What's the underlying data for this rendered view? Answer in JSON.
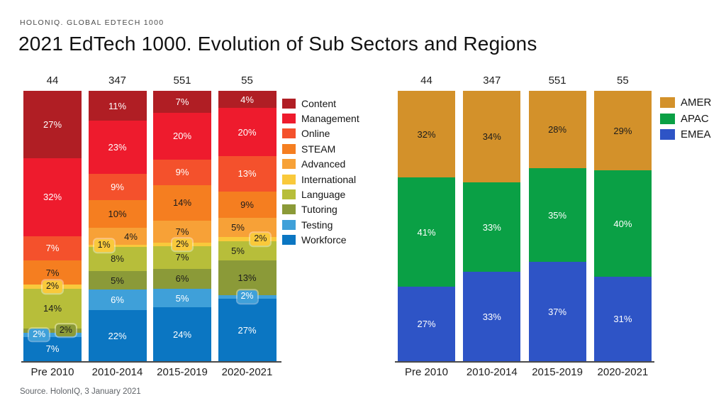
{
  "header": {
    "eyebrow": "HOLONIQ. GLOBAL EDTECH 1000",
    "title": "2021 EdTech 1000. Evolution of Sub Sectors and Regions"
  },
  "footer": {
    "source": "Source. HolonIQ, 3 January 2021"
  },
  "chart_data": [
    {
      "id": "subsectors",
      "type": "stacked-bar-percent",
      "unit": "%",
      "ylim": [
        0,
        100
      ],
      "legend_position": "right",
      "categories": [
        "Pre 2010",
        "2010-2014",
        "2015-2019",
        "2020-2021"
      ],
      "totals": [
        "44",
        "347",
        "551",
        "55"
      ],
      "series": [
        {
          "name": "Content",
          "color": "#B01E24",
          "text_color": "#ffffff",
          "values": [
            27,
            11,
            7,
            4
          ]
        },
        {
          "name": "Management",
          "color": "#EE1B2D",
          "text_color": "#ffffff",
          "values": [
            32,
            23,
            20,
            20
          ]
        },
        {
          "name": "Online",
          "color": "#F4512C",
          "text_color": "#ffffff",
          "values": [
            7,
            9,
            9,
            13
          ]
        },
        {
          "name": "STEAM",
          "color": "#F57E20",
          "text_color": "#1c1c1c",
          "values": [
            7,
            10,
            14,
            9
          ]
        },
        {
          "name": "Advanced",
          "color": "#F7A137",
          "text_color": "#1c1c1c",
          "values": [
            0,
            {
              "v": 4,
              "pos": "right"
            },
            7,
            {
              "v": 5,
              "pos": "left"
            }
          ]
        },
        {
          "name": "International",
          "color": "#F9C93B",
          "text_color": "#1c1c1c",
          "values": [
            {
              "v": 2,
              "tag": true
            },
            {
              "v": 1,
              "tag": true,
              "pos": "left"
            },
            {
              "v": 2,
              "tag": true
            },
            {
              "v": 2,
              "tag": true,
              "pos": "right"
            }
          ]
        },
        {
          "name": "Language",
          "color": "#B7BE3A",
          "text_color": "#1c1c1c",
          "values": [
            14,
            8,
            7,
            {
              "v": 5,
              "pos": "left"
            }
          ]
        },
        {
          "name": "Tutoring",
          "color": "#8B9A38",
          "text_color": "#1c1c1c",
          "values": [
            {
              "v": 2,
              "tag": true,
              "pos": "right"
            },
            5,
            6,
            13
          ]
        },
        {
          "name": "Testing",
          "color": "#3FA0D9",
          "text_color": "#ffffff",
          "values": [
            {
              "v": 2,
              "tag": true,
              "pos": "left"
            },
            6,
            5,
            {
              "v": 2,
              "tag": true
            }
          ]
        },
        {
          "name": "Workforce",
          "color": "#0B76C2",
          "text_color": "#ffffff",
          "values": [
            7,
            22,
            24,
            27
          ]
        }
      ]
    },
    {
      "id": "regions",
      "type": "stacked-bar-percent",
      "unit": "%",
      "ylim": [
        0,
        100
      ],
      "legend_position": "right",
      "categories": [
        "Pre 2010",
        "2010-2014",
        "2015-2019",
        "2020-2021"
      ],
      "totals": [
        "44",
        "347",
        "551",
        "55"
      ],
      "series": [
        {
          "name": "AMER",
          "color": "#D3912A",
          "text_color": "#1c1c1c",
          "values": [
            32,
            34,
            28,
            29
          ]
        },
        {
          "name": "APAC",
          "color": "#0AA045",
          "text_color": "#ffffff",
          "values": [
            41,
            33,
            35,
            40
          ]
        },
        {
          "name": "EMEA",
          "color": "#2E54C6",
          "text_color": "#ffffff",
          "values": [
            27,
            33,
            37,
            31
          ]
        }
      ]
    }
  ]
}
